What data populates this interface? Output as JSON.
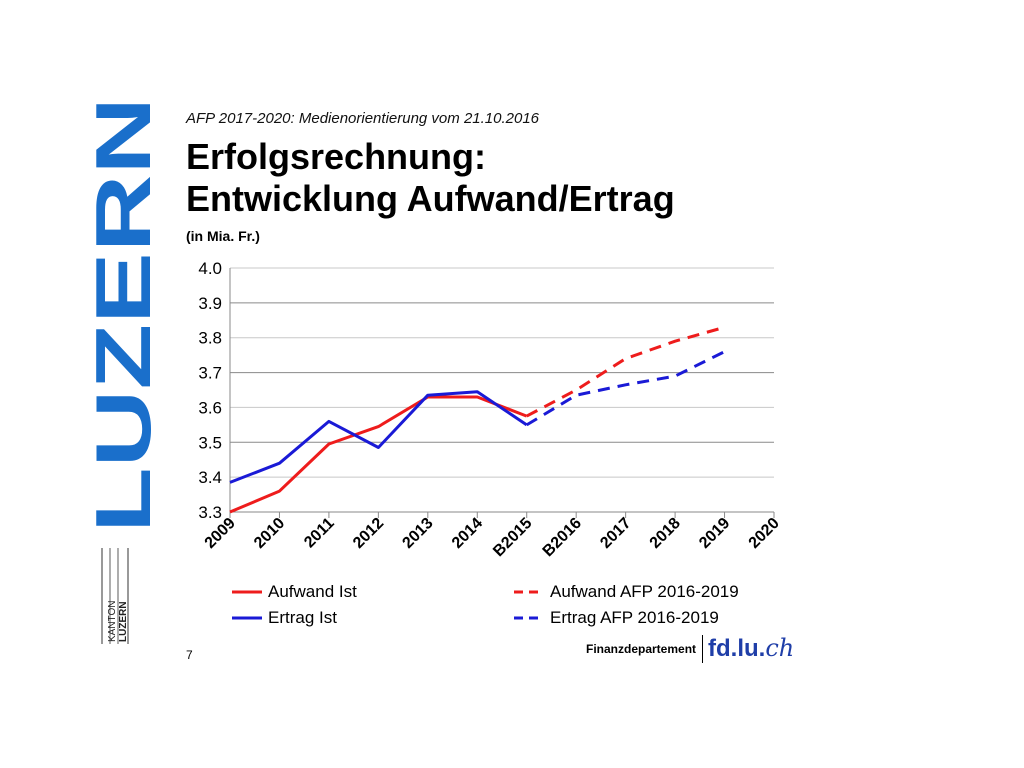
{
  "logo": {
    "text": "LUZERN",
    "color": "#1a6fcb"
  },
  "kanton_mark": {
    "line1": "KANTON",
    "line2": "LUZERN"
  },
  "header": {
    "subtitle": "AFP 2017-2020: Medienorientierung vom 21.10.2016",
    "title_line1": "Erfolgsrechnung:",
    "title_line2": "Entwicklung Aufwand/Ertrag",
    "unit": "(in Mia. Fr.)"
  },
  "chart_data": {
    "type": "line",
    "categories": [
      "2009",
      "2010",
      "2011",
      "2012",
      "2013",
      "2014",
      "B2015",
      "B2016",
      "2017",
      "2018",
      "2019",
      "2020"
    ],
    "ylim": [
      3.3,
      4.0
    ],
    "yticks": [
      "4.0",
      "3.9",
      "3.8",
      "3.7",
      "3.6",
      "3.5",
      "3.4",
      "3.3"
    ],
    "grid": true,
    "legend_position": "bottom",
    "series": [
      {
        "name": "Aufwand Ist",
        "color": "#ee1c1c",
        "style": "solid",
        "values": [
          3.3,
          3.36,
          3.495,
          3.545,
          3.63,
          3.63,
          3.575,
          null,
          null,
          null,
          null,
          null
        ]
      },
      {
        "name": "Aufwand AFP 2016-2019",
        "color": "#ee1c1c",
        "style": "dashed",
        "values": [
          null,
          null,
          null,
          null,
          null,
          null,
          3.575,
          3.65,
          3.74,
          3.79,
          3.83,
          null
        ]
      },
      {
        "name": "Ertrag Ist",
        "color": "#1a1ad6",
        "style": "solid",
        "values": [
          3.385,
          3.44,
          3.56,
          3.485,
          3.635,
          3.645,
          3.55,
          null,
          null,
          null,
          null,
          null
        ]
      },
      {
        "name": "Ertrag AFP 2016-2019",
        "color": "#1a1ad6",
        "style": "dashed",
        "values": [
          null,
          null,
          null,
          null,
          null,
          null,
          3.55,
          3.635,
          3.665,
          3.69,
          3.76,
          null
        ]
      }
    ]
  },
  "page": {
    "number": "7"
  },
  "footer": {
    "department": "Finanzdepartement",
    "site": "fd.lu.",
    "site_suffix": "ch"
  }
}
